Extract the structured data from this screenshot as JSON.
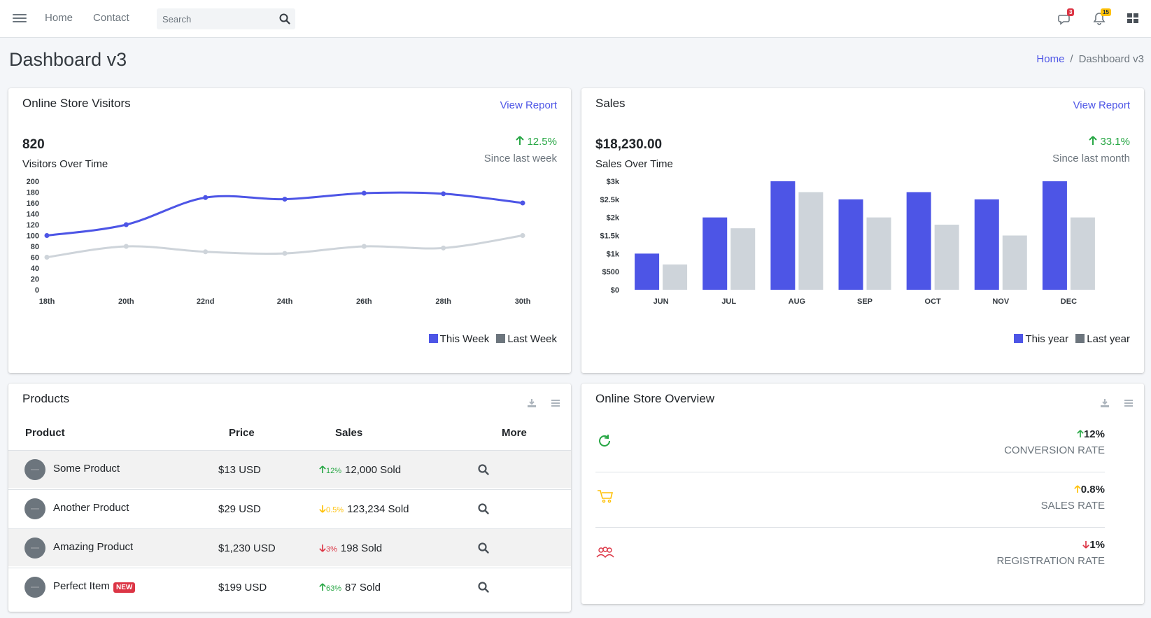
{
  "navbar": {
    "links": [
      "Home",
      "Contact"
    ],
    "search_placeholder": "Search",
    "messages_count": "3",
    "notifications_count": "15"
  },
  "header": {
    "title": "Dashboard v3",
    "breadcrumb": [
      "Home",
      "Dashboard v3"
    ]
  },
  "visitors": {
    "title": "Online Store Visitors",
    "view_report": "View Report",
    "value": "820",
    "label": "Visitors Over Time",
    "change": "12.5%",
    "since": "Since last week",
    "legend": [
      "This Week",
      "Last Week"
    ]
  },
  "sales": {
    "title": "Sales",
    "view_report": "View Report",
    "value": "$18,230.00",
    "label": "Sales Over Time",
    "change": "33.1%",
    "since": "Since last month",
    "legend": [
      "This year",
      "Last year"
    ]
  },
  "products": {
    "title": "Products",
    "columns": [
      "Product",
      "Price",
      "Sales",
      "More"
    ],
    "rows": [
      {
        "name": "Some Product",
        "price": "$13 USD",
        "pct": "12%",
        "trend": "up",
        "sold": "12,000 Sold",
        "badge": ""
      },
      {
        "name": "Another Product",
        "price": "$29 USD",
        "pct": "0.5%",
        "trend": "down-warn",
        "sold": "123,234 Sold",
        "badge": ""
      },
      {
        "name": "Amazing Product",
        "price": "$1,230 USD",
        "pct": "3%",
        "trend": "down",
        "sold": "198 Sold",
        "badge": ""
      },
      {
        "name": "Perfect Item",
        "price": "$199 USD",
        "pct": "63%",
        "trend": "up",
        "sold": "87 Sold",
        "badge": "NEW"
      }
    ]
  },
  "overview": {
    "title": "Online Store Overview",
    "items": [
      {
        "value": "12%",
        "label": "CONVERSION RATE",
        "icon": "refresh-icon",
        "color": "#28a745",
        "trend": "up"
      },
      {
        "value": "0.8%",
        "label": "SALES RATE",
        "icon": "cart-icon",
        "color": "#ffc107",
        "trend": "up"
      },
      {
        "value": "1%",
        "label": "REGISTRATION RATE",
        "icon": "users-icon",
        "color": "#dc3545",
        "trend": "down"
      }
    ]
  },
  "colors": {
    "primary": "#4d55e6",
    "secondary": "#ced4da",
    "success": "#28a745",
    "warning": "#ffc107",
    "danger": "#dc3545"
  },
  "chart_data": [
    {
      "type": "line",
      "x": [
        "18th",
        "20th",
        "22nd",
        "24th",
        "26th",
        "28th",
        "30th"
      ],
      "yticks": [
        "200",
        "180",
        "160",
        "140",
        "120",
        "100",
        "80",
        "60",
        "40",
        "20",
        "0"
      ],
      "ylim": [
        0,
        200
      ],
      "series": [
        {
          "name": "This Week",
          "values": [
            100,
            120,
            170,
            167,
            178,
            177,
            160
          ],
          "color": "#4d55e6"
        },
        {
          "name": "Last Week",
          "values": [
            60,
            80,
            70,
            67,
            80,
            77,
            100
          ],
          "color": "#ced4da"
        }
      ]
    },
    {
      "type": "bar",
      "categories": [
        "JUN",
        "JUL",
        "AUG",
        "SEP",
        "OCT",
        "NOV",
        "DEC"
      ],
      "yticks": [
        "$3k",
        "$2.5k",
        "$2k",
        "$1.5k",
        "$1k",
        "$500",
        "$0"
      ],
      "ylim": [
        0,
        3000
      ],
      "series": [
        {
          "name": "This year",
          "values": [
            1000,
            2000,
            3000,
            2500,
            2700,
            2500,
            3000
          ],
          "color": "#4d55e6"
        },
        {
          "name": "Last year",
          "values": [
            700,
            1700,
            2700,
            2000,
            1800,
            1500,
            2000
          ],
          "color": "#ced4da"
        }
      ]
    }
  ]
}
